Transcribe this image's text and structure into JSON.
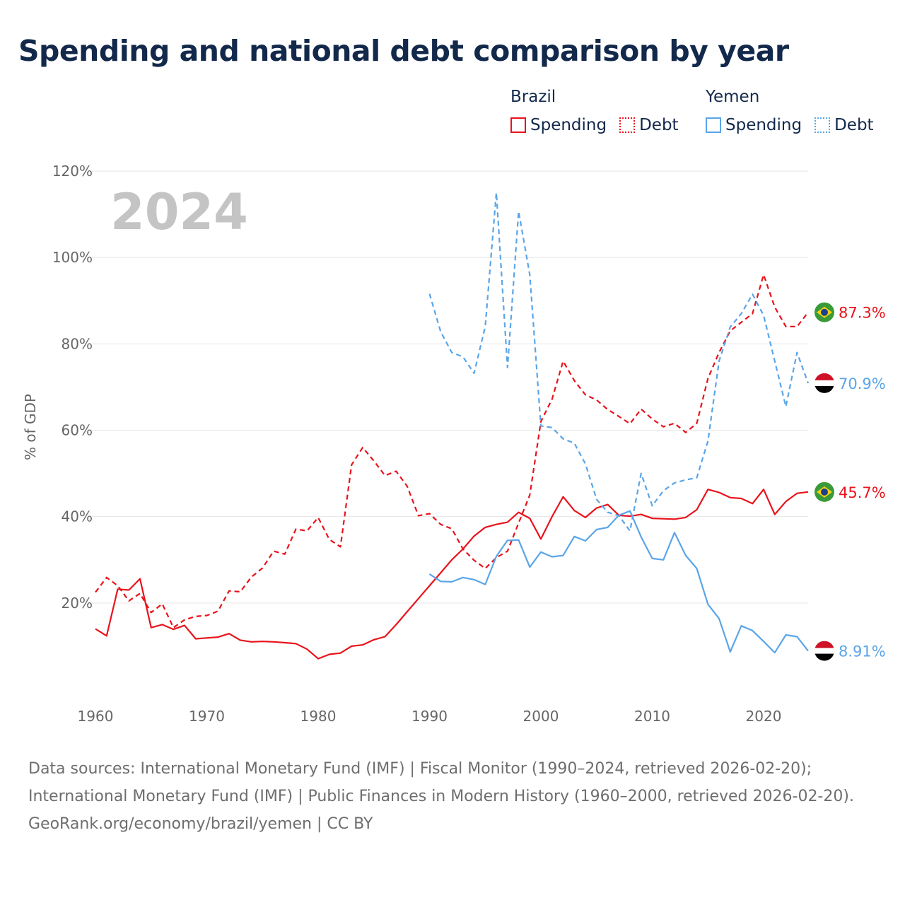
{
  "title": "Spending and national debt comparison by year",
  "legend": {
    "groups": [
      {
        "country": "Brazil",
        "color": "#e8131b",
        "items": [
          {
            "label": "Spending",
            "style": "solid"
          },
          {
            "label": "Debt",
            "style": "dotted"
          }
        ]
      },
      {
        "country": "Yemen",
        "color": "#5aa5e8",
        "items": [
          {
            "label": "Spending",
            "style": "solid"
          },
          {
            "label": "Debt",
            "style": "dotted"
          }
        ]
      }
    ]
  },
  "chart_data": {
    "type": "line",
    "year_label": "2024",
    "ylabel": "% of GDP",
    "xlim": [
      1960,
      2024
    ],
    "ylim": [
      0,
      120
    ],
    "x_ticks": [
      1960,
      1970,
      1980,
      1990,
      2000,
      2010,
      2020
    ],
    "y_ticks": [
      20,
      40,
      60,
      80,
      100,
      120
    ],
    "y_tick_labels": [
      "20%",
      "40%",
      "60%",
      "80%",
      "100%",
      "120%"
    ],
    "series": [
      {
        "name": "Brazil Spending",
        "country": "Brazil",
        "measure": "Spending",
        "color": "#e8131b",
        "dash": "solid",
        "end_label": "45.7%",
        "flag": "brazil",
        "x": [
          1960,
          1961,
          1962,
          1963,
          1964,
          1965,
          1966,
          1967,
          1968,
          1969,
          1970,
          1971,
          1972,
          1973,
          1974,
          1975,
          1976,
          1977,
          1978,
          1979,
          1980,
          1981,
          1982,
          1983,
          1984,
          1985,
          1986,
          1987,
          1988,
          1989,
          1990,
          1991,
          1992,
          1993,
          1994,
          1995,
          1996,
          1997,
          1998,
          1999,
          2000,
          2001,
          2002,
          2003,
          2004,
          2005,
          2006,
          2007,
          2008,
          2009,
          2010,
          2011,
          2012,
          2013,
          2014,
          2015,
          2016,
          2017,
          2018,
          2019,
          2020,
          2021,
          2022,
          2023,
          2024
        ],
        "values": [
          14.0,
          12.4,
          23.2,
          23.0,
          25.6,
          14.3,
          15.0,
          13.9,
          14.8,
          11.7,
          11.9,
          12.1,
          12.9,
          11.4,
          11.0,
          11.1,
          11.0,
          10.8,
          10.6,
          9.3,
          7.1,
          8.1,
          8.4,
          10.0,
          10.3,
          11.5,
          12.2,
          15.0,
          18.0,
          21.0,
          24.0,
          27.0,
          30.0,
          32.5,
          35.5,
          37.5,
          38.2,
          38.7,
          41.0,
          39.6,
          34.8,
          40.0,
          44.6,
          41.4,
          39.8,
          42.0,
          42.8,
          40.3,
          40.1,
          40.5,
          39.6,
          39.5,
          39.4,
          39.8,
          41.6,
          46.3,
          45.6,
          44.4,
          44.2,
          43.0,
          46.3,
          40.5,
          43.5,
          45.4,
          45.7
        ]
      },
      {
        "name": "Brazil Debt",
        "country": "Brazil",
        "measure": "Debt",
        "color": "#e8131b",
        "dash": "dashed",
        "end_label": "87.3%",
        "flag": "brazil",
        "x": [
          1960,
          1961,
          1962,
          1963,
          1964,
          1965,
          1966,
          1967,
          1968,
          1969,
          1970,
          1971,
          1972,
          1973,
          1974,
          1975,
          1976,
          1977,
          1978,
          1979,
          1980,
          1981,
          1982,
          1983,
          1984,
          1985,
          1986,
          1987,
          1988,
          1989,
          1990,
          1991,
          1992,
          1993,
          1994,
          1995,
          1996,
          1997,
          1998,
          1999,
          2000,
          2001,
          2002,
          2003,
          2004,
          2005,
          2006,
          2007,
          2008,
          2009,
          2010,
          2011,
          2012,
          2013,
          2014,
          2015,
          2016,
          2017,
          2018,
          2019,
          2020,
          2021,
          2022,
          2023,
          2024
        ],
        "values": [
          22.5,
          25.9,
          24.0,
          20.5,
          22.2,
          17.8,
          19.8,
          14.3,
          16.1,
          16.9,
          17.1,
          18.1,
          22.8,
          22.6,
          26.0,
          28.1,
          32.0,
          31.3,
          37.1,
          36.7,
          39.8,
          34.7,
          33.0,
          52.0,
          56.0,
          52.9,
          49.5,
          50.5,
          47.0,
          40.2,
          40.7,
          38.2,
          37.2,
          32.5,
          29.9,
          28.0,
          30.5,
          32.0,
          38.5,
          45.0,
          62.0,
          67.2,
          76.0,
          71.5,
          68.2,
          67.0,
          64.8,
          63.2,
          61.5,
          64.9,
          62.6,
          60.8,
          61.6,
          59.5,
          61.6,
          72.0,
          78.0,
          83.0,
          85.0,
          87.0,
          96.0,
          88.5,
          84.0,
          84.0,
          87.3
        ]
      },
      {
        "name": "Yemen Spending",
        "country": "Yemen",
        "measure": "Spending",
        "color": "#5aa5e8",
        "dash": "solid",
        "end_label": "8.91%",
        "flag": "yemen",
        "x": [
          1990,
          1991,
          1992,
          1993,
          1994,
          1995,
          1996,
          1997,
          1998,
          1999,
          2000,
          2001,
          2002,
          2003,
          2004,
          2005,
          2006,
          2007,
          2008,
          2009,
          2010,
          2011,
          2012,
          2013,
          2014,
          2015,
          2016,
          2017,
          2018,
          2019,
          2020,
          2021,
          2022,
          2023,
          2024
        ],
        "values": [
          26.7,
          25.0,
          24.9,
          25.9,
          25.4,
          24.3,
          30.8,
          34.5,
          34.6,
          28.3,
          31.8,
          30.7,
          31.0,
          35.4,
          34.4,
          37.0,
          37.5,
          40.3,
          41.3,
          35.3,
          30.3,
          30.0,
          36.3,
          31.0,
          28.0,
          19.7,
          16.4,
          8.7,
          14.7,
          13.6,
          11.1,
          8.5,
          12.6,
          12.2,
          8.91
        ]
      },
      {
        "name": "Yemen Debt",
        "country": "Yemen",
        "measure": "Debt",
        "color": "#5aa5e8",
        "dash": "dashed",
        "end_label": "70.9%",
        "flag": "yemen",
        "x": [
          1990,
          1991,
          1992,
          1993,
          1994,
          1995,
          1996,
          1997,
          1998,
          1999,
          2000,
          2001,
          2002,
          2003,
          2004,
          2005,
          2006,
          2007,
          2008,
          2009,
          2010,
          2011,
          2012,
          2013,
          2014,
          2015,
          2016,
          2017,
          2018,
          2019,
          2020,
          2021,
          2022,
          2023,
          2024
        ],
        "values": [
          91.6,
          82.8,
          78.0,
          77.0,
          73.2,
          84.0,
          115.0,
          74.5,
          110.7,
          96.0,
          61.0,
          60.6,
          58.0,
          57.0,
          52.2,
          44.0,
          41.0,
          40.2,
          36.7,
          50.0,
          42.5,
          46.0,
          47.8,
          48.5,
          49.0,
          57.5,
          76.0,
          83.9,
          87.0,
          91.5,
          86.6,
          76.0,
          65.5,
          78.0,
          70.9
        ]
      }
    ]
  },
  "footer": {
    "sources": "Data sources: International Monetary Fund (IMF) | Fiscal Monitor (1990–2024, retrieved 2026-02-20); International Monetary Fund (IMF) | Public Finances in Modern History (1960–2000, retrieved 2026-02-20).",
    "attribution": "GeoRank.org/economy/brazil/yemen | CC BY"
  }
}
